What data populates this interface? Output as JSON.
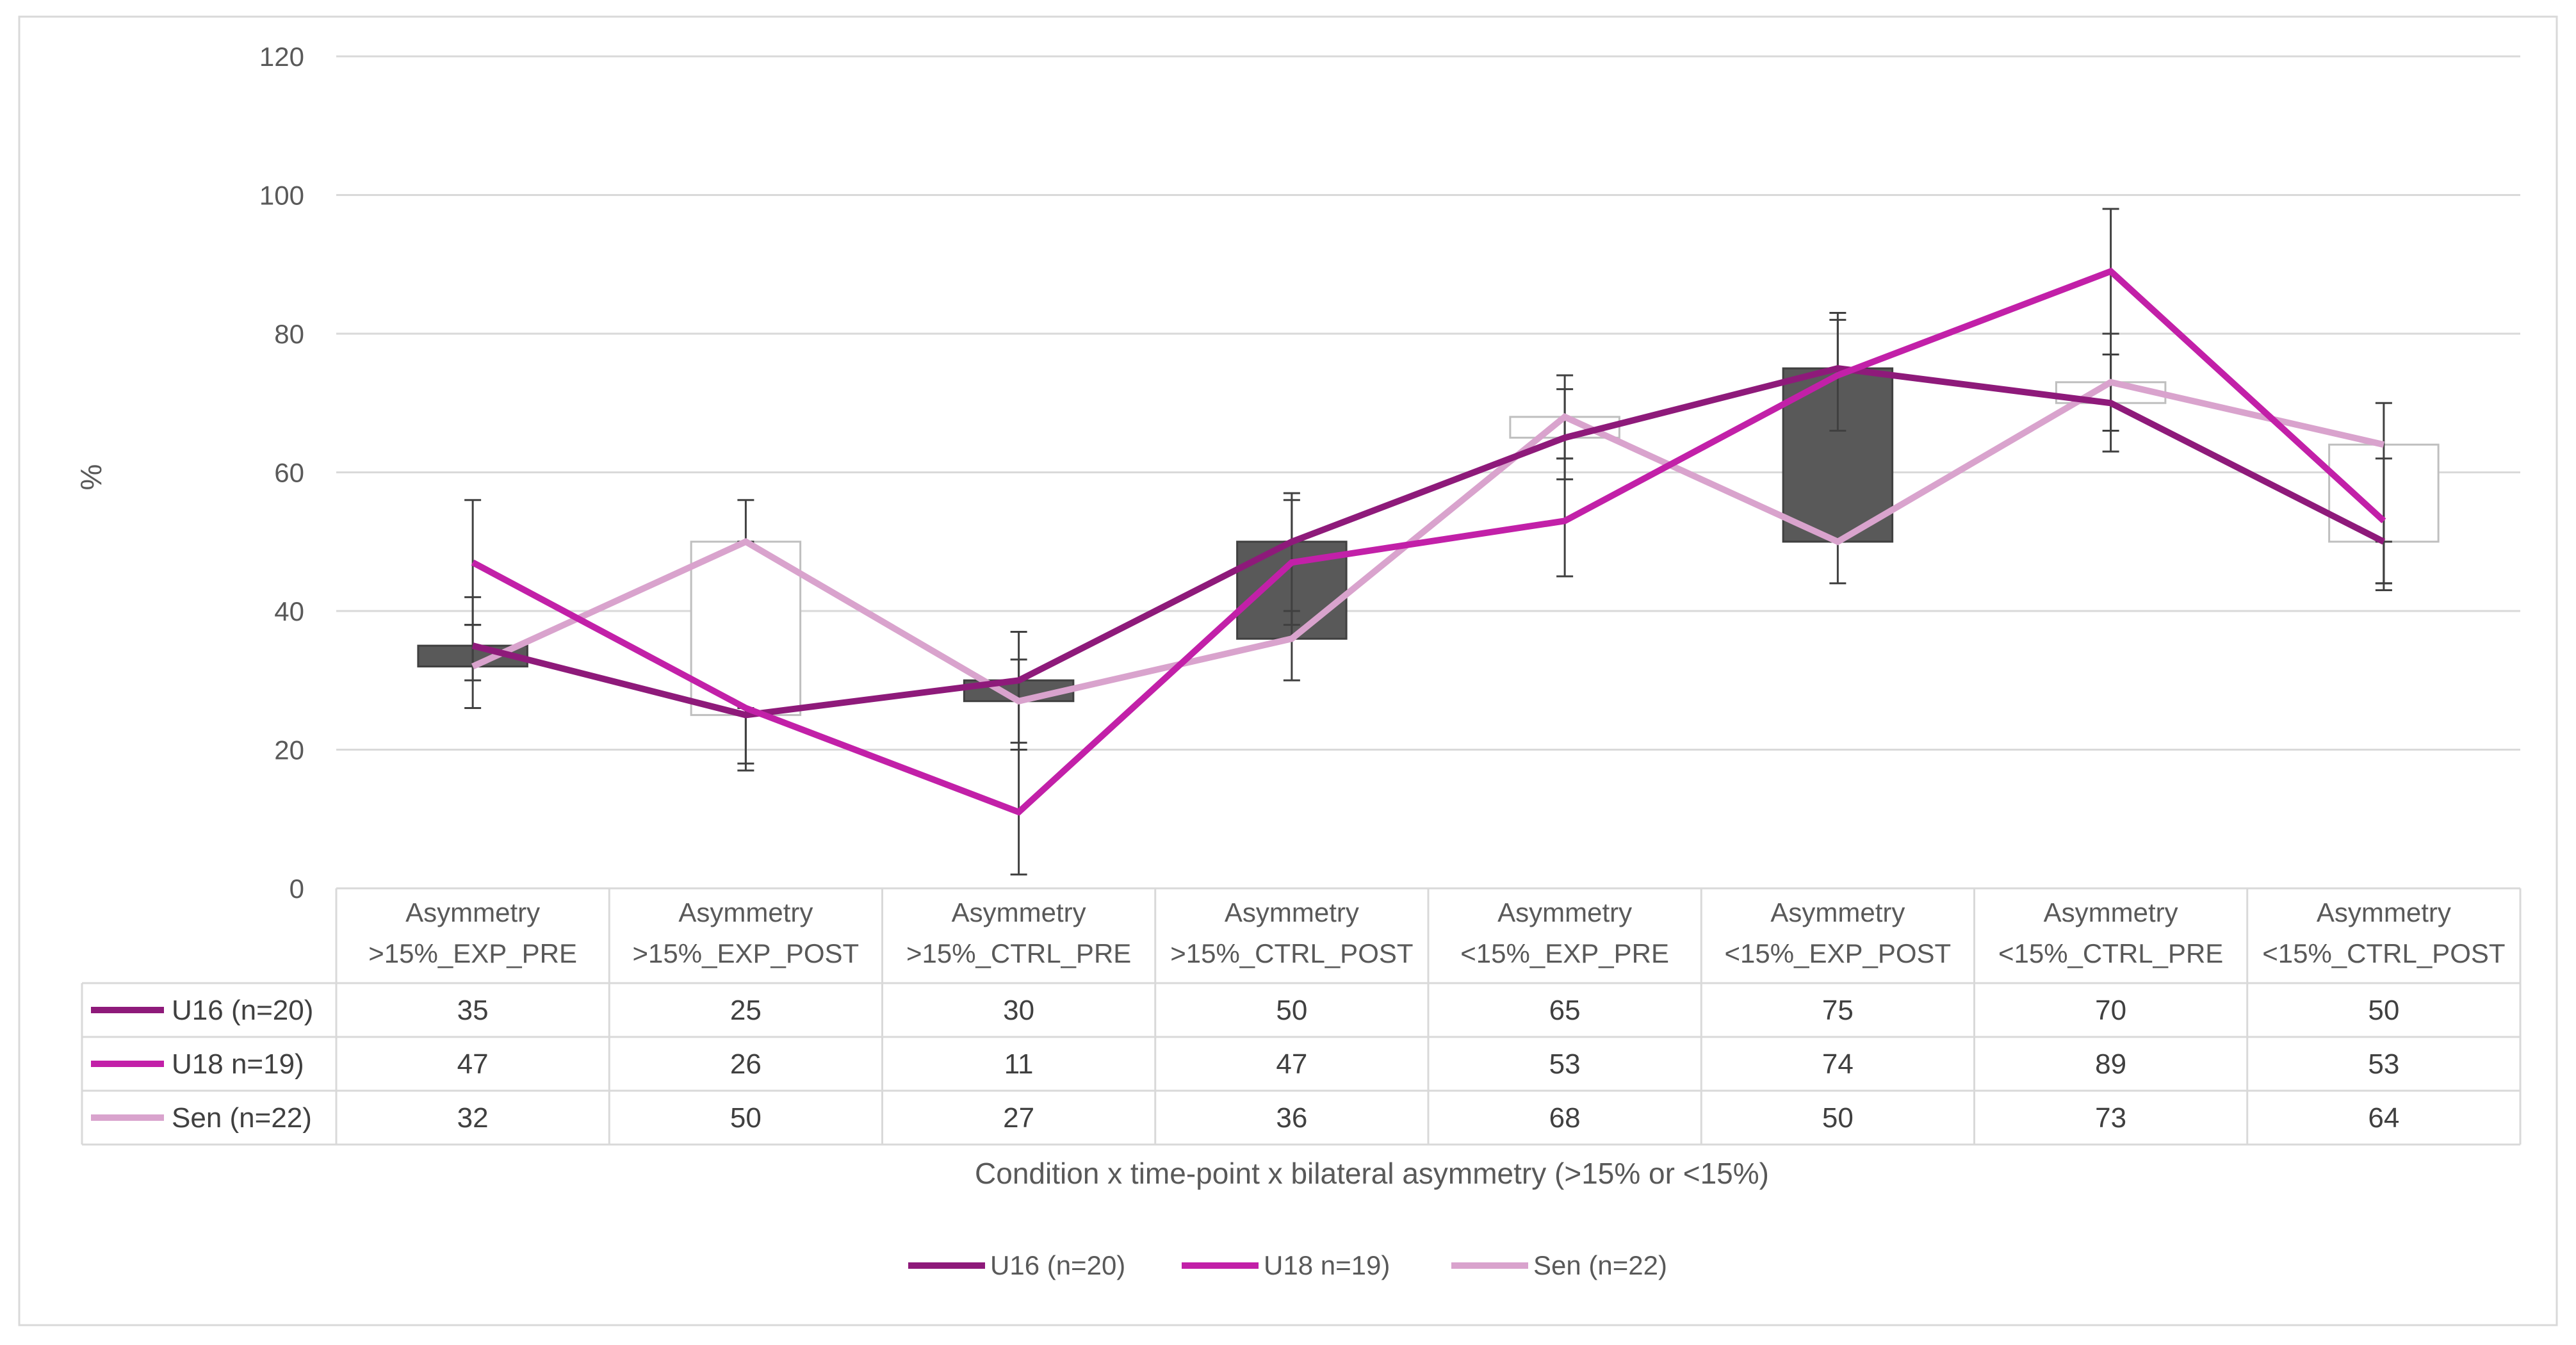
{
  "chart_data": {
    "type": "line",
    "ylabel": "%",
    "xlabel": "Condition x time-point x bilateral  asymmetry  (>15% or <15%)",
    "ylim": [
      0,
      120
    ],
    "yticks": [
      0,
      20,
      40,
      60,
      80,
      100,
      120
    ],
    "grid": true,
    "legend_position": "bottom",
    "categories": [
      [
        "Asymmetry",
        ">15%_EXP_PRE"
      ],
      [
        "Asymmetry",
        ">15%_EXP_POST"
      ],
      [
        "Asymmetry",
        ">15%_CTRL_PRE"
      ],
      [
        "Asymmetry",
        ">15%_CTRL_POST"
      ],
      [
        "Asymmetry",
        "<15%_EXP_PRE"
      ],
      [
        "Asymmetry",
        "<15%_EXP_POST"
      ],
      [
        "Asymmetry",
        "<15%_CTRL_PRE"
      ],
      [
        "Asymmetry",
        "<15%_CTRL_POST"
      ]
    ],
    "series": [
      {
        "name": "U16 (n=20)",
        "color": "#8e1a7a",
        "values": [
          35,
          25,
          30,
          50,
          65,
          75,
          70,
          50
        ],
        "errors": [
          [
            30,
            38
          ],
          [
            17,
            25
          ],
          [
            21,
            37
          ],
          [
            50,
            57
          ],
          [
            62,
            74
          ],
          [
            75,
            83
          ],
          [
            63,
            80
          ],
          [
            44,
            50
          ]
        ]
      },
      {
        "name": "U18 n=19)",
        "color": "#c220a8",
        "values": [
          47,
          26,
          11,
          47,
          53,
          74,
          89,
          53
        ],
        "errors": [
          [
            38,
            56
          ],
          [
            18,
            26
          ],
          [
            2,
            20
          ],
          [
            38,
            56
          ],
          [
            45,
            62
          ],
          [
            66,
            82
          ],
          [
            80,
            98
          ],
          [
            44,
            62
          ]
        ]
      },
      {
        "name": "Sen (n=22)",
        "color": "#d9a3cd",
        "values": [
          32,
          50,
          27,
          36,
          68,
          50,
          73,
          64
        ],
        "errors": [
          [
            26,
            42
          ],
          [
            50,
            56
          ],
          [
            20,
            33
          ],
          [
            30,
            40
          ],
          [
            59,
            72
          ],
          [
            44,
            50
          ],
          [
            66,
            77
          ],
          [
            43,
            70
          ]
        ]
      }
    ],
    "updown_bars": {
      "up_color": "#ffffff",
      "down_color": "#595959"
    },
    "data_table": {
      "rows": [
        {
          "label": "U16 (n=20)",
          "values": [
            "35",
            "25",
            "30",
            "50",
            "65",
            "75",
            "70",
            "50"
          ]
        },
        {
          "label": "U18 n=19)",
          "values": [
            "47",
            "26",
            "11",
            "47",
            "53",
            "74",
            "89",
            "53"
          ]
        },
        {
          "label": "Sen (n=22)",
          "values": [
            "32",
            "50",
            "27",
            "36",
            "68",
            "50",
            "73",
            "64"
          ]
        }
      ]
    }
  }
}
